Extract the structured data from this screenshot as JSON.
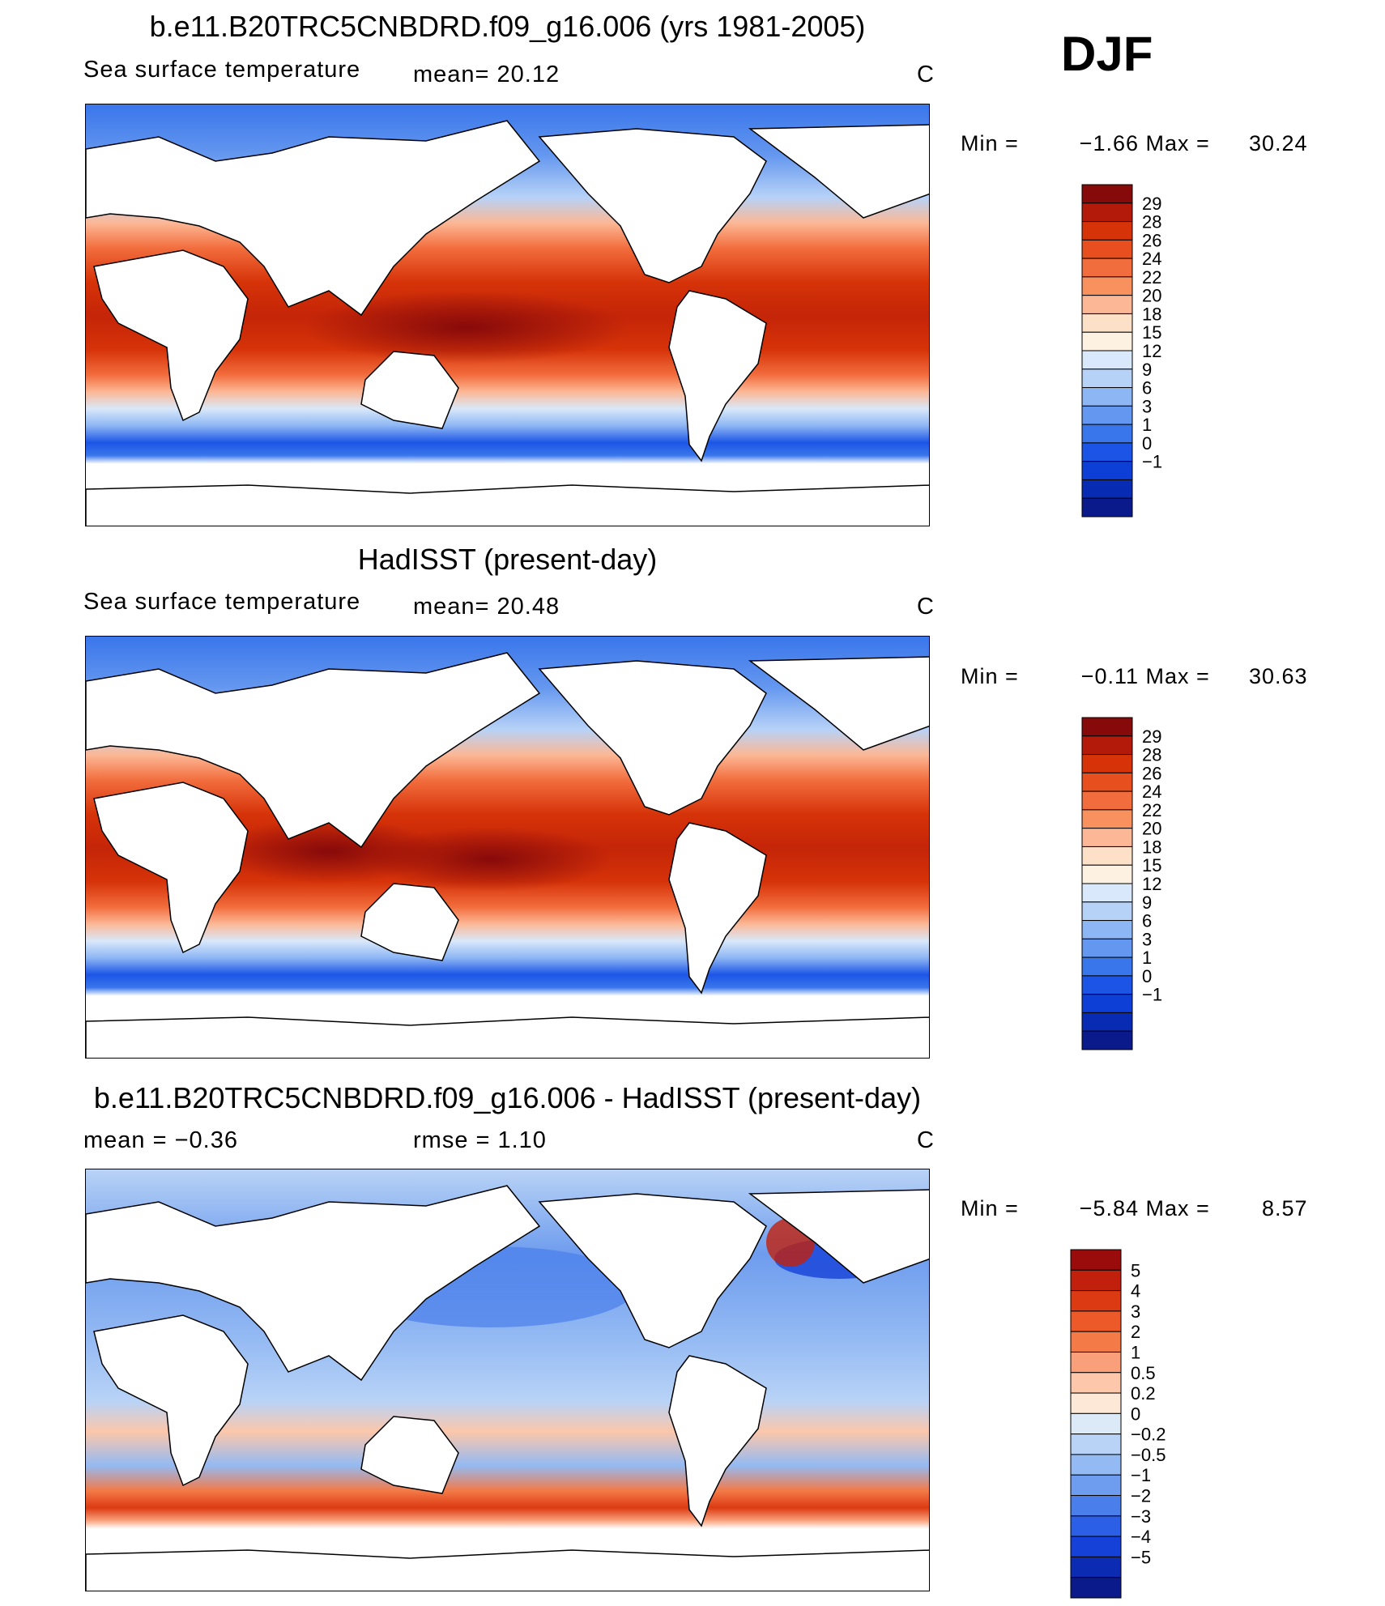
{
  "season": "DJF",
  "panels": [
    {
      "title": "b.e11.B20TRC5CNBDRD.f09_g16.006 (yrs 1981-2005)",
      "left_text": "Sea surface temperature",
      "center_text": "mean=   20.12",
      "unit": "C",
      "min_label": "Min  =",
      "min_value": "−1.66",
      "max_label": "Max  =",
      "max_value": "30.24"
    },
    {
      "title": "HadISST (present-day)",
      "left_text": "Sea surface temperature",
      "center_text": "mean=   20.48",
      "unit": "C",
      "min_label": "Min  =",
      "min_value": "−0.11",
      "max_label": "Max  =",
      "max_value": "30.63"
    },
    {
      "title": "b.e11.B20TRC5CNBDRD.f09_g16.006 - HadISST (present-day)",
      "left_text": "mean  =    −0.36",
      "center_text": "rmse  =    1.10",
      "unit": "C",
      "min_label": "Min  =",
      "min_value": "−5.84",
      "max_label": "Max  =",
      "max_value": "8.57"
    }
  ],
  "chart_data": [
    {
      "type": "heatmap",
      "title": "b.e11.B20TRC5CNBDRD.f09_g16.006 (yrs 1981-2005)",
      "variable": "Sea surface temperature",
      "unit": "C",
      "mean": 20.12,
      "min": -1.66,
      "max": 30.24,
      "colorbar_levels": [
        "29",
        "28",
        "26",
        "24",
        "22",
        "20",
        "18",
        "15",
        "12",
        "9",
        "6",
        "3",
        "1",
        "0",
        "−1"
      ],
      "colorbar_colors": [
        "#870a0a",
        "#b31a0a",
        "#d63309",
        "#e84f1f",
        "#f26d3d",
        "#f9915f",
        "#fcb896",
        "#fde0c8",
        "#fdf1e2",
        "#d9e8fa",
        "#b7d2f7",
        "#8db6f4",
        "#6497ef",
        "#3a76eb",
        "#1c55e6",
        "#0d3fd6",
        "#072bb2",
        "#0a1a8a"
      ]
    },
    {
      "type": "heatmap",
      "title": "HadISST (present-day)",
      "variable": "Sea surface temperature",
      "unit": "C",
      "mean": 20.48,
      "min": -0.11,
      "max": 30.63,
      "colorbar_levels": [
        "29",
        "28",
        "26",
        "24",
        "22",
        "20",
        "18",
        "15",
        "12",
        "9",
        "6",
        "3",
        "1",
        "0",
        "−1"
      ],
      "colorbar_colors": [
        "#870a0a",
        "#b31a0a",
        "#d63309",
        "#e84f1f",
        "#f26d3d",
        "#f9915f",
        "#fcb896",
        "#fde0c8",
        "#fdf1e2",
        "#d9e8fa",
        "#b7d2f7",
        "#8db6f4",
        "#6497ef",
        "#3a76eb",
        "#1c55e6",
        "#0d3fd6",
        "#072bb2",
        "#0a1a8a"
      ]
    },
    {
      "type": "heatmap",
      "title": "b.e11.B20TRC5CNBDRD.f09_g16.006 - HadISST (present-day)",
      "unit": "C",
      "mean": -0.36,
      "rmse": 1.1,
      "min": -5.84,
      "max": 8.57,
      "colorbar_levels": [
        "5",
        "4",
        "3",
        "2",
        "1",
        "0.5",
        "0.2",
        "0",
        "−0.2",
        "−0.5",
        "−1",
        "−2",
        "−3",
        "−4",
        "−5"
      ],
      "colorbar_colors": [
        "#9a0c0c",
        "#c1210c",
        "#dc3a12",
        "#ec5a2a",
        "#f47a48",
        "#f9a07a",
        "#fcc7aa",
        "#fde8d8",
        "#dceaf8",
        "#b9d3f6",
        "#94baf3",
        "#6e9cee",
        "#4a7feb",
        "#2a5fe6",
        "#1541d8",
        "#0a2bb2",
        "#0a1a8a"
      ]
    }
  ]
}
